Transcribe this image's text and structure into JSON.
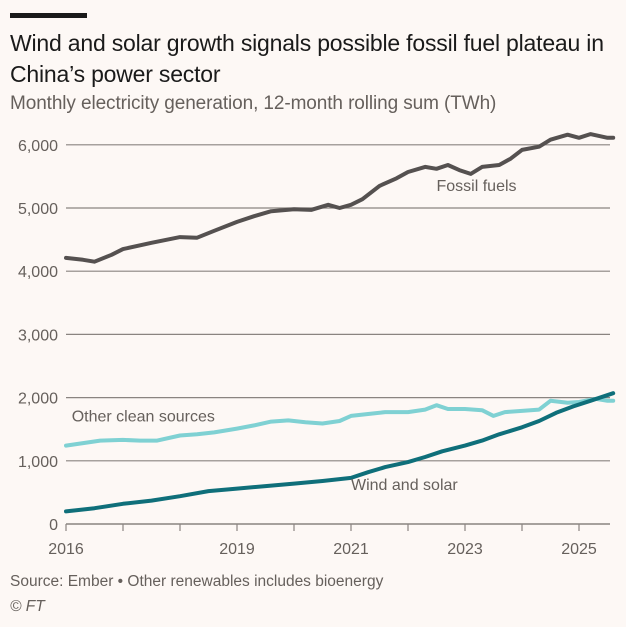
{
  "header": {
    "title": "Wind and solar growth signals possible fossil fuel plateau in China’s power sector",
    "subtitle": "Monthly electricity generation, 12-month rolling sum (TWh)"
  },
  "footer": {
    "source": "Source: Ember • Other renewables includes bioenergy",
    "copyright": "© FT"
  },
  "colors": {
    "fossil": "#555150",
    "other_clean": "#7fd1d3",
    "wind_solar": "#0f6f7a",
    "grid": "#8a8480",
    "text": "#66605c"
  },
  "chart_data": {
    "type": "line",
    "title": "Wind and solar growth signals possible fossil fuel plateau in China’s power sector",
    "subtitle": "Monthly electricity generation, 12-month rolling sum (TWh)",
    "xlabel": "",
    "ylabel": "TWh",
    "xlim": [
      2016,
      2025.6
    ],
    "ylim": [
      0,
      6000
    ],
    "grid": true,
    "legend": "inline labels",
    "x_ticks": [
      2016,
      2017,
      2018,
      2019,
      2020,
      2021,
      2022,
      2023,
      2024,
      2025
    ],
    "x_tick_labels": [
      {
        "x": 2016,
        "label": "2016"
      },
      {
        "x": 2019,
        "label": "2019"
      },
      {
        "x": 2021,
        "label": "2021"
      },
      {
        "x": 2023,
        "label": "2023"
      },
      {
        "x": 2025,
        "label": "2025"
      }
    ],
    "y_ticks": [
      {
        "y": 0,
        "label": "0"
      },
      {
        "y": 1000,
        "label": "1,000"
      },
      {
        "y": 2000,
        "label": "2,000"
      },
      {
        "y": 3000,
        "label": "3,000"
      },
      {
        "y": 4000,
        "label": "4,000"
      },
      {
        "y": 5000,
        "label": "5,000"
      },
      {
        "y": 6000,
        "label": "6,000"
      }
    ],
    "series": [
      {
        "name": "Fossil fuels",
        "color_key": "fossil",
        "label_at": {
          "x": 2022.5,
          "y": 5270
        },
        "x": [
          2016.0,
          2016.3,
          2016.5,
          2016.8,
          2017.0,
          2017.5,
          2018.0,
          2018.3,
          2018.6,
          2019.0,
          2019.3,
          2019.6,
          2020.0,
          2020.3,
          2020.6,
          2020.8,
          2021.0,
          2021.2,
          2021.5,
          2021.8,
          2022.0,
          2022.3,
          2022.5,
          2022.7,
          2022.9,
          2023.1,
          2023.3,
          2023.6,
          2023.8,
          2024.0,
          2024.3,
          2024.5,
          2024.8,
          2025.0,
          2025.2,
          2025.5,
          2025.6
        ],
        "values": [
          4210,
          4180,
          4150,
          4260,
          4350,
          4450,
          4540,
          4530,
          4640,
          4780,
          4870,
          4950,
          4980,
          4970,
          5050,
          5000,
          5050,
          5140,
          5350,
          5470,
          5570,
          5650,
          5620,
          5680,
          5600,
          5540,
          5650,
          5680,
          5780,
          5920,
          5970,
          6080,
          6160,
          6110,
          6170,
          6110,
          6110
        ]
      },
      {
        "name": "Other clean sources",
        "color_key": "other_clean",
        "label_at": {
          "x": 2016.1,
          "y": 1620
        },
        "x": [
          2016.0,
          2016.3,
          2016.6,
          2017.0,
          2017.3,
          2017.6,
          2018.0,
          2018.3,
          2018.6,
          2019.0,
          2019.3,
          2019.6,
          2019.9,
          2020.2,
          2020.5,
          2020.8,
          2021.0,
          2021.3,
          2021.6,
          2022.0,
          2022.3,
          2022.5,
          2022.7,
          2023.0,
          2023.3,
          2023.5,
          2023.7,
          2024.0,
          2024.3,
          2024.5,
          2024.8,
          2025.0,
          2025.3,
          2025.5,
          2025.6
        ],
        "values": [
          1240,
          1280,
          1320,
          1330,
          1320,
          1320,
          1400,
          1420,
          1450,
          1510,
          1560,
          1620,
          1640,
          1610,
          1590,
          1630,
          1710,
          1740,
          1770,
          1770,
          1810,
          1880,
          1820,
          1820,
          1800,
          1710,
          1770,
          1790,
          1810,
          1950,
          1920,
          1930,
          1980,
          1950,
          1950
        ]
      },
      {
        "name": "Wind and solar",
        "color_key": "wind_solar",
        "label_at": {
          "x": 2021.0,
          "y": 540
        },
        "x": [
          2016.0,
          2016.5,
          2017.0,
          2017.5,
          2018.0,
          2018.5,
          2019.0,
          2019.5,
          2020.0,
          2020.5,
          2021.0,
          2021.3,
          2021.6,
          2022.0,
          2022.3,
          2022.6,
          2023.0,
          2023.3,
          2023.6,
          2024.0,
          2024.3,
          2024.6,
          2024.9,
          2025.2,
          2025.6
        ],
        "values": [
          200,
          250,
          320,
          370,
          440,
          520,
          560,
          600,
          640,
          680,
          730,
          820,
          900,
          980,
          1060,
          1150,
          1240,
          1320,
          1420,
          1530,
          1630,
          1760,
          1860,
          1950,
          2070
        ]
      }
    ]
  }
}
